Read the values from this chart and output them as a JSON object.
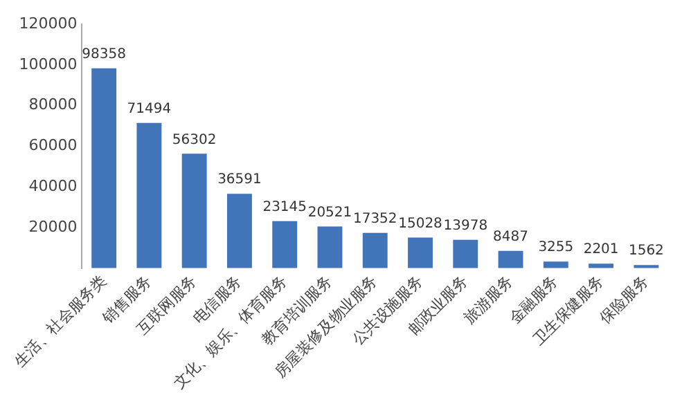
{
  "chart_data": {
    "type": "bar",
    "categories": [
      "生活、社会服务类",
      "销售服务",
      "互联网服务",
      "电信服务",
      "文化、娱乐、体育服务",
      "教育培训服务",
      "房屋装修及物业服务",
      "公共设施服务",
      "邮政业服务",
      "旅游服务",
      "金融服务",
      "卫生保健服务",
      "保险服务"
    ],
    "values": [
      98358,
      71494,
      56302,
      36591,
      23145,
      20521,
      17352,
      15028,
      13978,
      8487,
      3255,
      2201,
      1562
    ],
    "color": "#4174b8",
    "ylim": [
      0,
      120000
    ],
    "yticks": [
      20000,
      40000,
      60000,
      80000,
      100000,
      120000
    ],
    "grid": false,
    "data_labels": true,
    "legend": false
  }
}
